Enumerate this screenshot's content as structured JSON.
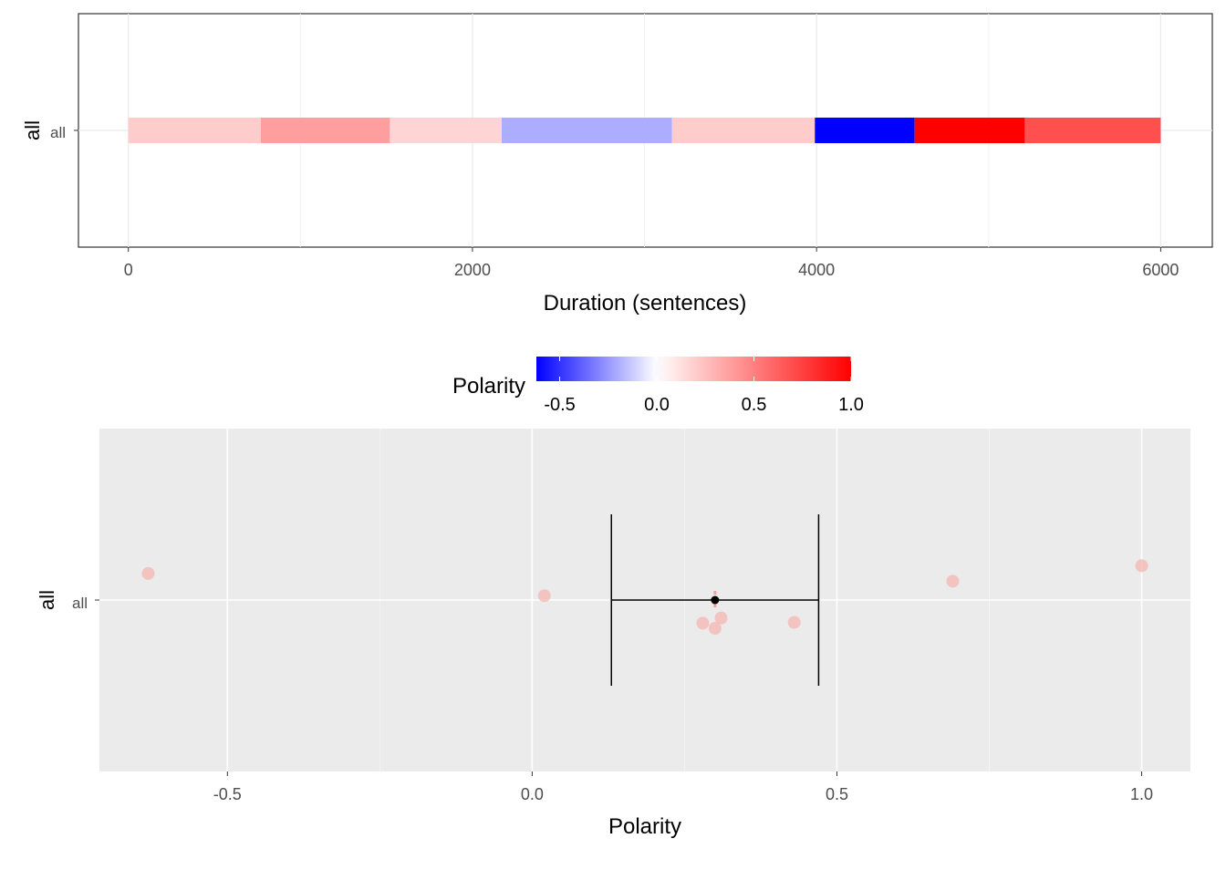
{
  "chart_data": [
    {
      "type": "heatmap",
      "xlabel": "Duration (sentences)",
      "ylabel": "all",
      "y_category": "all",
      "xlim": [
        -290,
        6300
      ],
      "x_ticks": [
        0,
        2000,
        4000,
        6000
      ],
      "x_tick_labels": [
        "0",
        "2000",
        "4000",
        "6000"
      ],
      "grid": true,
      "segments": [
        {
          "start": 0,
          "end": 770,
          "polarity": 0.2
        },
        {
          "start": 770,
          "end": 1520,
          "polarity": 0.38
        },
        {
          "start": 1520,
          "end": 2170,
          "polarity": 0.17
        },
        {
          "start": 2170,
          "end": 3160,
          "polarity": -0.2
        },
        {
          "start": 3160,
          "end": 3990,
          "polarity": 0.2
        },
        {
          "start": 3990,
          "end": 4570,
          "polarity": -0.62
        },
        {
          "start": 4570,
          "end": 5210,
          "polarity": 1.0
        },
        {
          "start": 5210,
          "end": 6000,
          "polarity": 0.69
        }
      ]
    },
    {
      "type": "scatter",
      "xlabel": "Polarity",
      "ylabel": "all",
      "y_category": "all",
      "xlim": [
        -0.71,
        1.08
      ],
      "x_ticks": [
        -0.5,
        0.0,
        0.5,
        1.0
      ],
      "x_tick_labels": [
        "-0.5",
        "0.0",
        "0.5",
        "1.0"
      ],
      "grid": true,
      "points": [
        {
          "x": -0.63,
          "jitter": 0.31
        },
        {
          "x": 0.02,
          "jitter": 0.05
        },
        {
          "x": 0.28,
          "jitter": -0.27
        },
        {
          "x": 0.3,
          "jitter": -0.33
        },
        {
          "x": 0.31,
          "jitter": -0.21
        },
        {
          "x": 0.43,
          "jitter": -0.26
        },
        {
          "x": 0.69,
          "jitter": 0.22
        },
        {
          "x": 1.0,
          "jitter": 0.4
        }
      ],
      "summary": {
        "mean": 0.3,
        "lower": 0.13,
        "upper": 0.47,
        "cap_span": 1.0
      }
    }
  ],
  "legend": {
    "title": "Polarity",
    "min": -0.62,
    "max": 1.0,
    "ticks": [
      -0.5,
      0.0,
      0.5,
      1.0
    ],
    "tick_labels": [
      "-0.5",
      "0.0",
      "0.5",
      "1.0"
    ],
    "low_color": "#0000ff",
    "mid_color": "#ffffff",
    "high_color": "#ff0000",
    "placement": "between panels"
  },
  "colors": {
    "point_fill": "#f4b6b0",
    "panel_bg": "#ebebeb",
    "grid_light": "#ebebeb",
    "summary": "#000000"
  }
}
